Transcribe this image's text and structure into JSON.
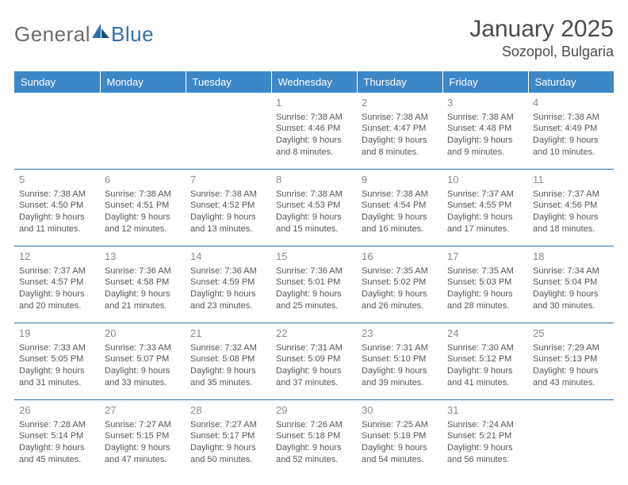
{
  "brand": {
    "word1": "General",
    "word2": "Blue"
  },
  "title": "January 2025",
  "location": "Sozopol, Bulgaria",
  "styling": {
    "header_bg": "#3d87c7",
    "header_text": "#ffffff",
    "row_border": "#2f6fa8",
    "daynum_color": "#8a8a8a",
    "body_text": "#555555",
    "title_color": "#4a4a4a",
    "logo_gray": "#6b6b6b",
    "logo_blue": "#2f6fa8",
    "page_bg": "#ffffff",
    "title_fontsize": 30,
    "location_fontsize": 18,
    "dayhdr_fontsize": 13,
    "cell_fontsize": 11
  },
  "weekdays": [
    "Sunday",
    "Monday",
    "Tuesday",
    "Wednesday",
    "Thursday",
    "Friday",
    "Saturday"
  ],
  "weeks": [
    [
      null,
      null,
      null,
      {
        "d": "1",
        "sr": "7:38 AM",
        "ss": "4:46 PM",
        "dl": "9 hours and 8 minutes."
      },
      {
        "d": "2",
        "sr": "7:38 AM",
        "ss": "4:47 PM",
        "dl": "9 hours and 8 minutes."
      },
      {
        "d": "3",
        "sr": "7:38 AM",
        "ss": "4:48 PM",
        "dl": "9 hours and 9 minutes."
      },
      {
        "d": "4",
        "sr": "7:38 AM",
        "ss": "4:49 PM",
        "dl": "9 hours and 10 minutes."
      }
    ],
    [
      {
        "d": "5",
        "sr": "7:38 AM",
        "ss": "4:50 PM",
        "dl": "9 hours and 11 minutes."
      },
      {
        "d": "6",
        "sr": "7:38 AM",
        "ss": "4:51 PM",
        "dl": "9 hours and 12 minutes."
      },
      {
        "d": "7",
        "sr": "7:38 AM",
        "ss": "4:52 PM",
        "dl": "9 hours and 13 minutes."
      },
      {
        "d": "8",
        "sr": "7:38 AM",
        "ss": "4:53 PM",
        "dl": "9 hours and 15 minutes."
      },
      {
        "d": "9",
        "sr": "7:38 AM",
        "ss": "4:54 PM",
        "dl": "9 hours and 16 minutes."
      },
      {
        "d": "10",
        "sr": "7:37 AM",
        "ss": "4:55 PM",
        "dl": "9 hours and 17 minutes."
      },
      {
        "d": "11",
        "sr": "7:37 AM",
        "ss": "4:56 PM",
        "dl": "9 hours and 18 minutes."
      }
    ],
    [
      {
        "d": "12",
        "sr": "7:37 AM",
        "ss": "4:57 PM",
        "dl": "9 hours and 20 minutes."
      },
      {
        "d": "13",
        "sr": "7:36 AM",
        "ss": "4:58 PM",
        "dl": "9 hours and 21 minutes."
      },
      {
        "d": "14",
        "sr": "7:36 AM",
        "ss": "4:59 PM",
        "dl": "9 hours and 23 minutes."
      },
      {
        "d": "15",
        "sr": "7:36 AM",
        "ss": "5:01 PM",
        "dl": "9 hours and 25 minutes."
      },
      {
        "d": "16",
        "sr": "7:35 AM",
        "ss": "5:02 PM",
        "dl": "9 hours and 26 minutes."
      },
      {
        "d": "17",
        "sr": "7:35 AM",
        "ss": "5:03 PM",
        "dl": "9 hours and 28 minutes."
      },
      {
        "d": "18",
        "sr": "7:34 AM",
        "ss": "5:04 PM",
        "dl": "9 hours and 30 minutes."
      }
    ],
    [
      {
        "d": "19",
        "sr": "7:33 AM",
        "ss": "5:05 PM",
        "dl": "9 hours and 31 minutes."
      },
      {
        "d": "20",
        "sr": "7:33 AM",
        "ss": "5:07 PM",
        "dl": "9 hours and 33 minutes."
      },
      {
        "d": "21",
        "sr": "7:32 AM",
        "ss": "5:08 PM",
        "dl": "9 hours and 35 minutes."
      },
      {
        "d": "22",
        "sr": "7:31 AM",
        "ss": "5:09 PM",
        "dl": "9 hours and 37 minutes."
      },
      {
        "d": "23",
        "sr": "7:31 AM",
        "ss": "5:10 PM",
        "dl": "9 hours and 39 minutes."
      },
      {
        "d": "24",
        "sr": "7:30 AM",
        "ss": "5:12 PM",
        "dl": "9 hours and 41 minutes."
      },
      {
        "d": "25",
        "sr": "7:29 AM",
        "ss": "5:13 PM",
        "dl": "9 hours and 43 minutes."
      }
    ],
    [
      {
        "d": "26",
        "sr": "7:28 AM",
        "ss": "5:14 PM",
        "dl": "9 hours and 45 minutes."
      },
      {
        "d": "27",
        "sr": "7:27 AM",
        "ss": "5:15 PM",
        "dl": "9 hours and 47 minutes."
      },
      {
        "d": "28",
        "sr": "7:27 AM",
        "ss": "5:17 PM",
        "dl": "9 hours and 50 minutes."
      },
      {
        "d": "29",
        "sr": "7:26 AM",
        "ss": "5:18 PM",
        "dl": "9 hours and 52 minutes."
      },
      {
        "d": "30",
        "sr": "7:25 AM",
        "ss": "5:19 PM",
        "dl": "9 hours and 54 minutes."
      },
      {
        "d": "31",
        "sr": "7:24 AM",
        "ss": "5:21 PM",
        "dl": "9 hours and 56 minutes."
      },
      null
    ]
  ],
  "labels": {
    "sunrise": "Sunrise:",
    "sunset": "Sunset:",
    "daylight": "Daylight:"
  }
}
